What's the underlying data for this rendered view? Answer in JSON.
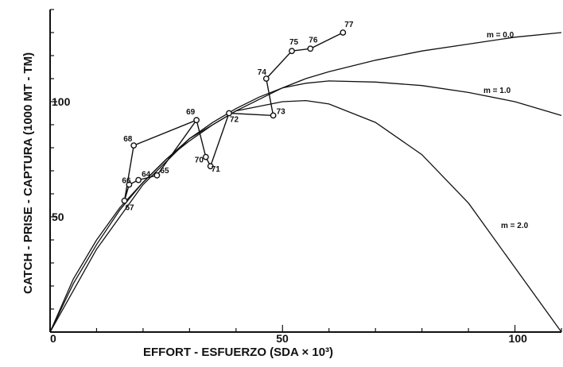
{
  "chart_data": {
    "type": "line",
    "xlabel": "EFFORT - ESFUERZO (SDA × 10³)",
    "ylabel": "CATCH - PRISE - CAPTURA (1000 MT - TM)",
    "xlim": [
      0,
      110
    ],
    "ylim": [
      0,
      140
    ],
    "x_ticks": [
      0,
      50,
      100
    ],
    "y_ticks": [
      50,
      100
    ],
    "minor_tick_step": 10,
    "grid": false,
    "series": [
      {
        "name": "m = 0.0",
        "kind": "model",
        "x": [
          0,
          5,
          10,
          15,
          20,
          25,
          30,
          35,
          40,
          45,
          50,
          55,
          60,
          70,
          80,
          90,
          100,
          110
        ],
        "y": [
          0,
          23,
          40,
          54,
          65,
          75,
          83,
          90,
          96,
          101,
          106,
          110,
          113,
          118,
          122,
          125,
          128,
          130
        ]
      },
      {
        "name": "m = 1.0",
        "kind": "model",
        "x": [
          0,
          5,
          10,
          15,
          20,
          25,
          30,
          35,
          40,
          45,
          50,
          55,
          60,
          70,
          80,
          90,
          100,
          110
        ],
        "y": [
          0,
          21,
          38,
          53,
          65,
          75,
          84,
          91,
          97,
          102,
          106,
          108,
          109,
          108.5,
          107,
          104,
          100,
          94
        ]
      },
      {
        "name": "m = 2.0",
        "kind": "model",
        "x": [
          0,
          10,
          20,
          30,
          40,
          50,
          55,
          60,
          70,
          80,
          90,
          100,
          110
        ],
        "y": [
          0,
          36,
          64,
          84,
          96,
          100,
          100.5,
          99,
          91,
          77,
          56,
          28,
          0
        ]
      }
    ],
    "observed": {
      "labels": [
        "64",
        "65",
        "66",
        "67",
        "68",
        "69",
        "70",
        "71",
        "72",
        "73",
        "74",
        "75",
        "76",
        "77"
      ],
      "x": [
        19,
        23,
        17,
        16,
        18,
        31.5,
        33.5,
        34.5,
        38.5,
        48,
        46.5,
        52,
        56,
        63
      ],
      "y": [
        66,
        68,
        64,
        57,
        81,
        92,
        76,
        72,
        95,
        94,
        110,
        122,
        123,
        130
      ],
      "path_order": [
        "67",
        "66",
        "64",
        "65",
        "69",
        "68",
        "67"
      ],
      "path_order_2": [
        "69",
        "70",
        "71",
        "72",
        "73",
        "74",
        "75",
        "76",
        "77"
      ]
    }
  },
  "labels": {
    "m0": "m = 0.0",
    "m1": "m = 1.0",
    "m2": "m = 2.0"
  }
}
